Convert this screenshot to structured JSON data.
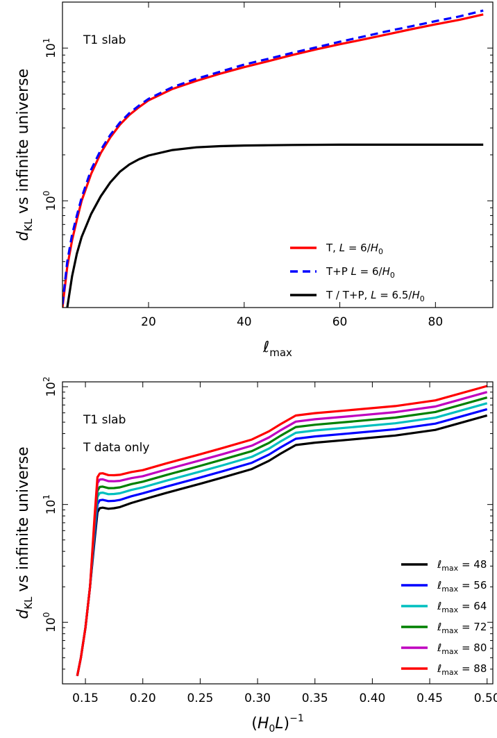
{
  "chart_data": [
    {
      "type": "line",
      "title": "",
      "annotations": [
        "T1 slab"
      ],
      "xlabel": "ℓmax",
      "xlabel_base": "ℓ",
      "xlabel_sub": "max",
      "ylabel": "dKL vs infinite universe",
      "ylabel_base": "d",
      "ylabel_sub": "KL",
      "ylabel_rest": " vs infinite universe",
      "yscale": "log",
      "xlim": [
        2,
        92
      ],
      "ylim": [
        0.2,
        20
      ],
      "xticks": [
        20,
        40,
        60,
        80
      ],
      "xtick_labels": [
        "20",
        "40",
        "60",
        "80"
      ],
      "yticks": [
        1,
        10
      ],
      "ytick_labels": [
        {
          "base": "10",
          "exp": "0"
        },
        {
          "base": "10",
          "exp": "1"
        }
      ],
      "legend_position": "lower-right",
      "series": [
        {
          "name": "T, L = 6/H0",
          "label_parts": [
            {
              "t": "T, "
            },
            {
              "t": "L",
              "i": true
            },
            {
              "t": " = 6/"
            },
            {
              "t": "H",
              "i": true
            },
            {
              "t": "0",
              "sub": true
            }
          ],
          "color": "#ff0000",
          "dash": "solid",
          "x": [
            2,
            3,
            4,
            5,
            6,
            8,
            10,
            12,
            14,
            16,
            18,
            20,
            25,
            30,
            35,
            40,
            45,
            50,
            55,
            60,
            65,
            70,
            75,
            80,
            85,
            90
          ],
          "y": [
            0.2,
            0.37,
            0.55,
            0.75,
            1.0,
            1.5,
            2.05,
            2.6,
            3.15,
            3.65,
            4.1,
            4.55,
            5.4,
            6.1,
            6.8,
            7.5,
            8.2,
            9.0,
            9.8,
            10.6,
            11.4,
            12.3,
            13.3,
            14.3,
            15.3,
            16.6
          ]
        },
        {
          "name": "T+P L = 6/H0",
          "label_parts": [
            {
              "t": "T+P "
            },
            {
              "t": "L",
              "i": true
            },
            {
              "t": " = 6/"
            },
            {
              "t": "H",
              "i": true
            },
            {
              "t": "0",
              "sub": true
            }
          ],
          "color": "#0000ff",
          "dash": "dashed",
          "x": [
            2,
            3,
            4,
            5,
            6,
            8,
            10,
            12,
            14,
            16,
            18,
            20,
            25,
            30,
            35,
            40,
            45,
            50,
            55,
            60,
            65,
            70,
            75,
            80,
            85,
            90
          ],
          "y": [
            0.21,
            0.4,
            0.6,
            0.8,
            1.05,
            1.6,
            2.15,
            2.7,
            3.25,
            3.75,
            4.2,
            4.65,
            5.55,
            6.3,
            7.0,
            7.8,
            8.5,
            9.3,
            10.1,
            11.0,
            11.9,
            12.9,
            13.9,
            15.0,
            16.1,
            17.6
          ]
        },
        {
          "name": "T / T+P, L = 6.5/H0",
          "label_parts": [
            {
              "t": "T / T+P, "
            },
            {
              "t": "L",
              "i": true
            },
            {
              "t": " = 6.5/"
            },
            {
              "t": "H",
              "i": true
            },
            {
              "t": "0",
              "sub": true
            }
          ],
          "color": "#000000",
          "dash": "solid",
          "x": [
            3,
            4,
            5,
            6,
            8,
            10,
            12,
            14,
            16,
            18,
            20,
            25,
            30,
            35,
            40,
            45,
            50,
            60,
            70,
            80,
            90
          ],
          "y": [
            0.2,
            0.32,
            0.45,
            0.58,
            0.82,
            1.07,
            1.32,
            1.55,
            1.73,
            1.87,
            1.98,
            2.15,
            2.24,
            2.28,
            2.3,
            2.31,
            2.32,
            2.33,
            2.33,
            2.33,
            2.33
          ]
        }
      ]
    },
    {
      "type": "line",
      "title": "",
      "annotations": [
        "T1 slab",
        "T data only"
      ],
      "xlabel": "(H0L)−1",
      "ylabel": "dKL vs infinite universe",
      "ylabel_base": "d",
      "ylabel_sub": "KL",
      "ylabel_rest": " vs infinite universe",
      "yscale": "log",
      "xlim": [
        0.13,
        0.505
      ],
      "ylim": [
        0.3,
        110
      ],
      "xticks": [
        0.15,
        0.2,
        0.25,
        0.3,
        0.35,
        0.4,
        0.45,
        0.5
      ],
      "xtick_labels": [
        "0.15",
        "0.20",
        "0.25",
        "0.30",
        "0.35",
        "0.40",
        "0.45",
        "0.50"
      ],
      "yticks": [
        1,
        10,
        100
      ],
      "ytick_labels": [
        {
          "base": "10",
          "exp": "0"
        },
        {
          "base": "10",
          "exp": "1"
        },
        {
          "base": "10",
          "exp": "2"
        }
      ],
      "legend_position": "lower-right",
      "base_x": [
        0.1429,
        0.146,
        0.15,
        0.154,
        0.158,
        0.1605,
        0.1625,
        0.165,
        0.17,
        0.175,
        0.18,
        0.19,
        0.2,
        0.22,
        0.25,
        0.27,
        0.295,
        0.31,
        0.32,
        0.3333,
        0.35,
        0.38,
        0.42,
        0.455,
        0.5
      ],
      "base_y": [
        0.35,
        0.5,
        0.9,
        2.0,
        5.0,
        8.6,
        9.3,
        9.4,
        9.2,
        9.3,
        9.5,
        10.3,
        11.0,
        12.5,
        15.0,
        17.0,
        20.0,
        23.5,
        27.0,
        32.0,
        33.5,
        35.5,
        38.5,
        43.0,
        57.0
      ],
      "series": [
        {
          "name": "ℓmax = 48",
          "label_value": "48",
          "color": "#000000",
          "scale": 1.0,
          "spike": 1.0
        },
        {
          "name": "ℓmax = 56",
          "label_value": "56",
          "color": "#0000ff",
          "scale": 1.13,
          "spike": 1.17
        },
        {
          "name": "ℓmax = 64",
          "label_value": "64",
          "color": "#00bfbf",
          "scale": 1.27,
          "spike": 1.35
        },
        {
          "name": "ℓmax = 72",
          "label_value": "72",
          "color": "#008000",
          "scale": 1.42,
          "spike": 1.52
        },
        {
          "name": "ℓmax = 80",
          "label_value": "80",
          "color": "#bf00bf",
          "scale": 1.58,
          "spike": 1.76
        },
        {
          "name": "ℓmax = 88",
          "label_value": "88",
          "color": "#ff0000",
          "scale": 1.78,
          "spike": 1.98
        }
      ]
    }
  ]
}
